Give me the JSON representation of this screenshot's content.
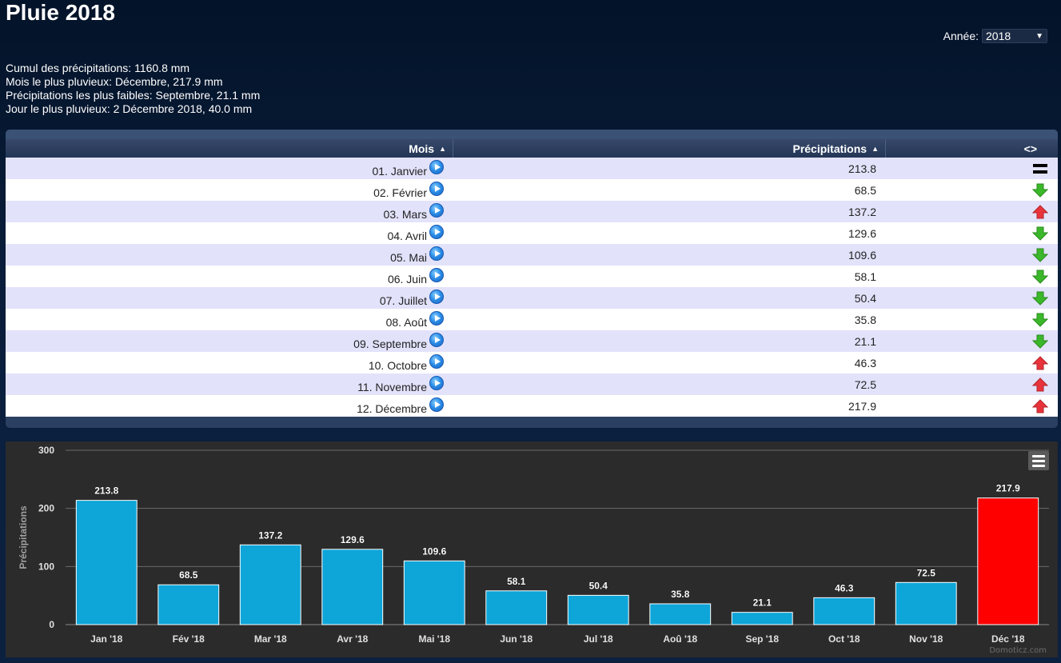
{
  "page": {
    "title": "Pluie 2018"
  },
  "year_selector": {
    "label": "Année:",
    "value": "2018"
  },
  "summary": {
    "total": "Cumul des précipitations: 1160.8 mm",
    "wettest_month": "Mois le plus pluvieux: Décembre, 217.9 mm",
    "driest_month": "Précipitations les plus faibles: Septembre, 21.1 mm",
    "wettest_day": "Jour le plus pluvieux: 2 Décembre 2018, 40.0 mm"
  },
  "table": {
    "headers": {
      "month": "Mois",
      "precipitation": "Précipitations",
      "trend": "<>"
    },
    "rows": [
      {
        "month": "01. Janvier",
        "value": "213.8",
        "trend": "equal"
      },
      {
        "month": "02. Février",
        "value": "68.5",
        "trend": "down"
      },
      {
        "month": "03. Mars",
        "value": "137.2",
        "trend": "up"
      },
      {
        "month": "04. Avril",
        "value": "129.6",
        "trend": "down"
      },
      {
        "month": "05. Mai",
        "value": "109.6",
        "trend": "down"
      },
      {
        "month": "06. Juin",
        "value": "58.1",
        "trend": "down"
      },
      {
        "month": "07. Juillet",
        "value": "50.4",
        "trend": "down"
      },
      {
        "month": "08. Août",
        "value": "35.8",
        "trend": "down"
      },
      {
        "month": "09. Septembre",
        "value": "21.1",
        "trend": "down"
      },
      {
        "month": "10. Octobre",
        "value": "46.3",
        "trend": "up"
      },
      {
        "month": "11. Novembre",
        "value": "72.5",
        "trend": "up"
      },
      {
        "month": "12. Décembre",
        "value": "217.9",
        "trend": "up"
      }
    ]
  },
  "colors": {
    "bar": "#0ea5d8",
    "bar_highlight": "#ff0000",
    "trend_up": "#e8333a",
    "trend_down": "#3bb82a"
  },
  "credit": "Domoticz.com",
  "chart_data": {
    "type": "bar",
    "title": "",
    "xlabel": "",
    "ylabel": "Précipitations",
    "ylim": [
      0,
      300
    ],
    "yticks": [
      0,
      100,
      200,
      300
    ],
    "grid": true,
    "categories": [
      "Jan '18",
      "Fév '18",
      "Mar '18",
      "Avr '18",
      "Mai '18",
      "Jun '18",
      "Jul '18",
      "Aoû '18",
      "Sep '18",
      "Oct '18",
      "Nov '18",
      "Déc '18"
    ],
    "values": [
      213.8,
      68.5,
      137.2,
      129.6,
      109.6,
      58.1,
      50.4,
      35.8,
      21.1,
      46.3,
      72.5,
      217.9
    ],
    "highlight_index": 11
  }
}
